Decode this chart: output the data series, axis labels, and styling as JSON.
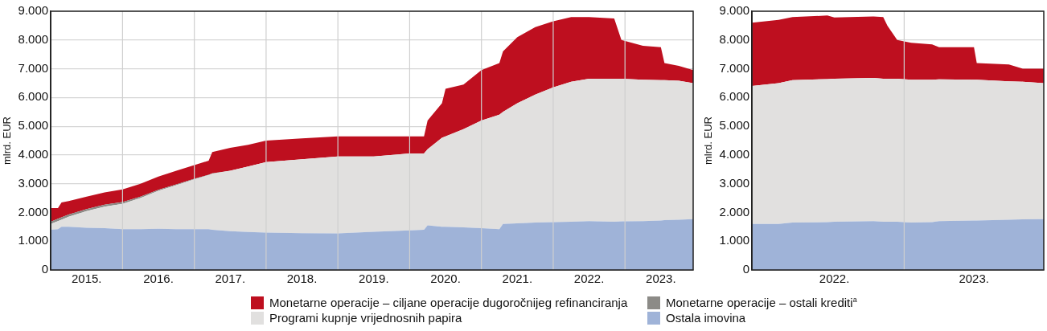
{
  "chart_data": [
    {
      "type": "area",
      "stacked": true,
      "ylabel": "mlrd. EUR",
      "grid": "y",
      "legend": "bottom",
      "x": [
        2015.0,
        2015.1,
        2015.15,
        2015.25,
        2015.5,
        2015.75,
        2016.0,
        2016.25,
        2016.5,
        2016.75,
        2017.0,
        2017.2,
        2017.25,
        2017.5,
        2017.75,
        2018.0,
        2018.5,
        2019.0,
        2019.5,
        2020.0,
        2020.2,
        2020.25,
        2020.45,
        2020.5,
        2020.75,
        2021.0,
        2021.25,
        2021.3,
        2021.5,
        2021.75,
        2022.0,
        2022.25,
        2022.5,
        2022.85,
        2022.95,
        2023.25,
        2023.5,
        2023.55,
        2023.75,
        2023.95
      ],
      "series": [
        {
          "name": "Ostala imovina",
          "color": "#9fb3d8",
          "values": [
            1400,
            1420,
            1500,
            1500,
            1470,
            1450,
            1420,
            1420,
            1430,
            1420,
            1420,
            1420,
            1400,
            1350,
            1320,
            1300,
            1280,
            1270,
            1330,
            1380,
            1400,
            1550,
            1500,
            1500,
            1480,
            1450,
            1420,
            1600,
            1620,
            1650,
            1660,
            1680,
            1700,
            1680,
            1690,
            1700,
            1720,
            1730,
            1750,
            1770
          ]
        },
        {
          "name": "Programi kupnje vrijednosnih papira",
          "color": "#e1e0df",
          "values": [
            200,
            280,
            250,
            350,
            580,
            750,
            880,
            1080,
            1320,
            1530,
            1730,
            1880,
            1950,
            2100,
            2280,
            2450,
            2570,
            2680,
            2620,
            2670,
            2650,
            2650,
            3100,
            3150,
            3420,
            3750,
            3980,
            3900,
            4180,
            4450,
            4690,
            4870,
            4950,
            4970,
            4960,
            4920,
            4880,
            4870,
            4830,
            4730
          ]
        },
        {
          "name": "Monetarne operacije – ostali krediti$^{a}$",
          "color": "#8c8b87",
          "values": [
            80,
            80,
            80,
            80,
            70,
            70,
            60,
            50,
            40,
            30,
            20,
            10,
            10,
            0,
            0,
            0,
            0,
            0,
            0,
            0,
            0,
            0,
            0,
            0,
            0,
            0,
            0,
            0,
            0,
            0,
            0,
            0,
            0,
            0,
            0,
            0,
            0,
            0,
            0,
            0
          ]
        },
        {
          "name": "Monetarne operacije – ciljane operacije dugoročnijeg refinanciranja",
          "color": "#be0f1f",
          "values": [
            470,
            370,
            520,
            470,
            430,
            430,
            440,
            450,
            460,
            470,
            480,
            490,
            740,
            800,
            750,
            750,
            730,
            700,
            700,
            600,
            600,
            1000,
            1200,
            1650,
            1550,
            1750,
            1800,
            2100,
            2300,
            2350,
            2300,
            2250,
            2150,
            2100,
            1350,
            1180,
            1150,
            600,
            520,
            450
          ]
        }
      ],
      "xlim": [
        2015.0,
        2023.95
      ],
      "xticks": [
        {
          "value": 2015.5,
          "label": "2015."
        },
        {
          "value": 2016.5,
          "label": "2016."
        },
        {
          "value": 2017.5,
          "label": "2017."
        },
        {
          "value": 2018.5,
          "label": "2018."
        },
        {
          "value": 2019.5,
          "label": "2019."
        },
        {
          "value": 2020.5,
          "label": "2020."
        },
        {
          "value": 2021.5,
          "label": "2021."
        },
        {
          "value": 2022.5,
          "label": "2022."
        },
        {
          "value": 2023.5,
          "label": "2023."
        }
      ],
      "ref_lines": [
        {
          "axis": "x",
          "value": 2016,
          "color": "#cfcfcf"
        },
        {
          "axis": "x",
          "value": 2017,
          "color": "#cfcfcf"
        },
        {
          "axis": "x",
          "value": 2018,
          "color": "#cfcfcf"
        },
        {
          "axis": "x",
          "value": 2019,
          "color": "#cfcfcf"
        },
        {
          "axis": "x",
          "value": 2020,
          "color": "#cfcfcf"
        },
        {
          "axis": "x",
          "value": 2021,
          "color": "#cfcfcf"
        },
        {
          "axis": "x",
          "value": 2022,
          "color": "#cfcfcf"
        },
        {
          "axis": "x",
          "value": 2023,
          "color": "#cfcfcf"
        }
      ],
      "ylim": [
        0,
        9000
      ],
      "yticks": [
        0,
        {
          "value": 1000,
          "label": "1.000"
        },
        {
          "value": 2000,
          "label": "2.000"
        },
        {
          "value": 3000,
          "label": "3.000"
        },
        {
          "value": 4000,
          "label": "4.000"
        },
        {
          "value": 5000,
          "label": "5.000"
        },
        {
          "value": 6000,
          "label": "6.000"
        },
        {
          "value": 7000,
          "label": "7.000"
        },
        {
          "value": 8000,
          "label": "8.000"
        },
        {
          "value": 9000,
          "label": "9.000"
        }
      ]
    },
    {
      "type": "area",
      "stacked": true,
      "ylabel": "mlrd. EUR",
      "grid": "y",
      "x": [
        2021.91,
        2022.1,
        2022.2,
        2022.45,
        2022.5,
        2022.78,
        2022.85,
        2022.88,
        2022.95,
        2023.05,
        2023.2,
        2023.25,
        2023.5,
        2023.52,
        2023.75,
        2023.85,
        2024.0
      ],
      "series": [
        {
          "color": "#9fb3d8",
          "values": [
            1600,
            1600,
            1650,
            1660,
            1680,
            1700,
            1680,
            1680,
            1680,
            1650,
            1660,
            1700,
            1720,
            1720,
            1750,
            1760,
            1770
          ]
        },
        {
          "color": "#e1e0df",
          "values": [
            4800,
            4900,
            4950,
            4980,
            4970,
            4980,
            4970,
            4970,
            4970,
            4970,
            4960,
            4930,
            4900,
            4900,
            4810,
            4790,
            4730
          ]
        },
        {
          "color": "#be0f1f",
          "values": [
            2200,
            2200,
            2200,
            2210,
            2130,
            2140,
            2150,
            1850,
            1350,
            1280,
            1230,
            1120,
            1130,
            580,
            590,
            450,
            500
          ]
        }
      ],
      "xlim": [
        2021.91,
        2024.0
      ],
      "xticks": [
        {
          "value": 2022.5,
          "label": "2022."
        },
        {
          "value": 2023.5,
          "label": "2023."
        }
      ],
      "ref_lines": [
        {
          "axis": "x",
          "value": 2023,
          "color": "#cfcfcf"
        }
      ],
      "ylim": [
        0,
        9000
      ],
      "yticks": [
        0,
        {
          "value": 1000,
          "label": "1.000"
        },
        {
          "value": 2000,
          "label": "2.000"
        },
        {
          "value": 3000,
          "label": "3.000"
        },
        {
          "value": 4000,
          "label": "4.000"
        },
        {
          "value": 5000,
          "label": "5.000"
        },
        {
          "value": 6000,
          "label": "6.000"
        },
        {
          "value": 7000,
          "label": "7.000"
        },
        {
          "value": 8000,
          "label": "8.000"
        },
        {
          "value": 9000,
          "label": "9.000"
        }
      ]
    }
  ]
}
